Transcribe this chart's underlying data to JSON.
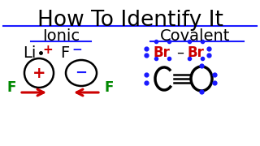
{
  "title": "How To Identify It",
  "title_fontsize": 19,
  "bg_color": "#ffffff",
  "ionic_label": "Ionic",
  "covalent_label": "Covalent",
  "section_label_fontsize": 14,
  "blue_color": "#1a1aff",
  "red_color": "#cc0000",
  "green_color": "#008800",
  "black_color": "#000000"
}
